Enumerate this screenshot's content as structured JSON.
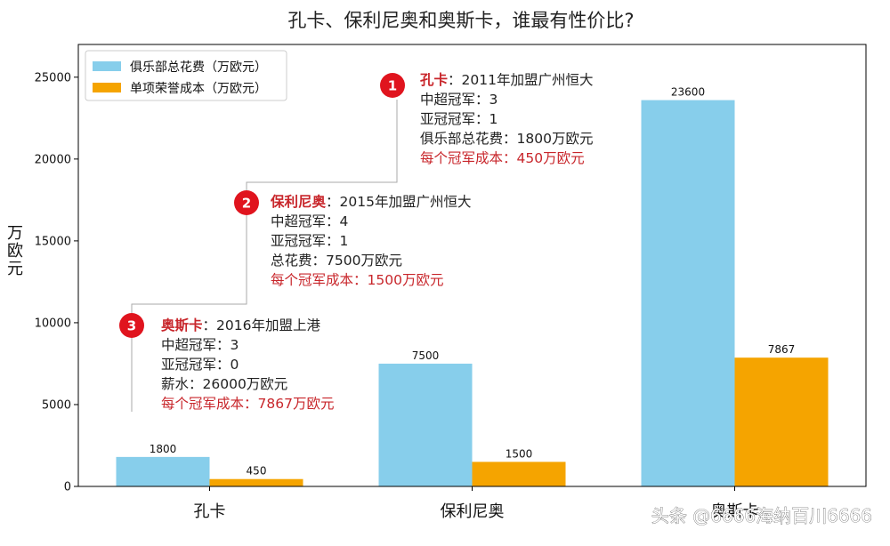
{
  "chart_data": {
    "type": "bar",
    "title": "孔卡、保利尼奥和奥斯卡，谁最有性价比?",
    "ylabel": "万欧元",
    "xlabel": "",
    "categories": [
      "孔卡",
      "保利尼奥",
      "奥斯卡"
    ],
    "series": [
      {
        "name": "俱乐部总花费（万欧元）",
        "color": "#87ceeb",
        "values": [
          1800,
          7500,
          23600
        ]
      },
      {
        "name": "单项荣誉成本（万欧元）",
        "color": "#f5a400",
        "values": [
          450,
          1500,
          7867
        ]
      }
    ],
    "data_labels": [
      [
        "1800",
        "7500",
        "23600"
      ],
      [
        "450",
        "1500",
        "7867"
      ]
    ],
    "ylim": [
      0,
      27000
    ],
    "yticks": [
      0,
      5000,
      10000,
      15000,
      20000,
      25000
    ],
    "ytick_labels": [
      "0",
      "5000",
      "10000",
      "15000",
      "20000",
      "25000"
    ],
    "legend_placement": "top-left",
    "grid": false,
    "annotations": [
      {
        "badge": "1",
        "lines": [
          {
            "parts": [
              {
                "text": "孔卡",
                "style": "red-bold"
              },
              {
                "text": "：2011年加盟广州恒大",
                "style": "normal"
              }
            ]
          },
          {
            "parts": [
              {
                "text": "中超冠军：3",
                "style": "normal"
              }
            ]
          },
          {
            "parts": [
              {
                "text": "亚冠冠军：1",
                "style": "normal"
              }
            ]
          },
          {
            "parts": [
              {
                "text": "俱乐部总花费：1800万欧元",
                "style": "normal"
              }
            ]
          },
          {
            "parts": [
              {
                "text": "每个冠军成本：450万欧元",
                "style": "red"
              }
            ]
          }
        ]
      },
      {
        "badge": "2",
        "lines": [
          {
            "parts": [
              {
                "text": "保利尼奥",
                "style": "red-bold"
              },
              {
                "text": "：2015年加盟广州恒大",
                "style": "normal"
              }
            ]
          },
          {
            "parts": [
              {
                "text": "中超冠军：4",
                "style": "normal"
              }
            ]
          },
          {
            "parts": [
              {
                "text": "亚冠冠军：1",
                "style": "normal"
              }
            ]
          },
          {
            "parts": [
              {
                "text": "总花费：7500万欧元",
                "style": "normal"
              }
            ]
          },
          {
            "parts": [
              {
                "text": "每个冠军成本：1500万欧元",
                "style": "red"
              }
            ]
          }
        ]
      },
      {
        "badge": "3",
        "lines": [
          {
            "parts": [
              {
                "text": "奥斯卡",
                "style": "red-bold"
              },
              {
                "text": "：2016年加盟上港",
                "style": "normal"
              }
            ]
          },
          {
            "parts": [
              {
                "text": "中超冠军：3",
                "style": "normal"
              }
            ]
          },
          {
            "parts": [
              {
                "text": "亚冠冠军：0",
                "style": "normal"
              }
            ]
          },
          {
            "parts": [
              {
                "text": "薪水：26000万欧元",
                "style": "normal"
              }
            ]
          },
          {
            "parts": [
              {
                "text": "每个冠军成本：7867万欧元",
                "style": "red"
              }
            ]
          }
        ]
      }
    ],
    "colors": {
      "badge": "#e0141e",
      "red_text": "#c8262b",
      "connector": "#aaaaaa"
    }
  },
  "watermark": "头条 @6666海纳百川6666"
}
